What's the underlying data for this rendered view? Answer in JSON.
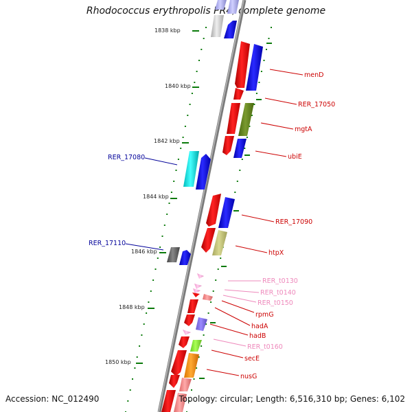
{
  "title": "Rhodococcus erythropolis PR4, complete genome",
  "footer": {
    "accession": "Accession: NC_012490",
    "stats": "Topology: circular; Length: 6,516,310 bp; Genes: 6,102"
  },
  "kbp_labels": [
    "1838 kbp",
    "1840 kbp",
    "1842 kbp",
    "1844 kbp",
    "1846 kbp",
    "1848 kbp",
    "1850 kbp"
  ],
  "colors": {
    "backbone": "#8a8a8a",
    "cds": "#ee0000",
    "gene_blue": "#1010ee",
    "label_red": "#cc0000",
    "label_blue": "#000099",
    "label_pink": "#ee77aa",
    "tick": "#0a7a0a"
  },
  "gene_labels": [
    {
      "name": "menD",
      "color": "#cc0000"
    },
    {
      "name": "RER_17050",
      "color": "#cc0000"
    },
    {
      "name": "mgtA",
      "color": "#cc0000"
    },
    {
      "name": "ubiE",
      "color": "#cc0000"
    },
    {
      "name": "RER_17080",
      "color": "#000099"
    },
    {
      "name": "RER_17090",
      "color": "#cc0000"
    },
    {
      "name": "RER_17110",
      "color": "#000099"
    },
    {
      "name": "htpX",
      "color": "#cc0000"
    },
    {
      "name": "RER_t0130",
      "color": "#ee88bb"
    },
    {
      "name": "RER_t0140",
      "color": "#ee88bb"
    },
    {
      "name": "RER_t0150",
      "color": "#ee88bb"
    },
    {
      "name": "rpmG",
      "color": "#cc0000"
    },
    {
      "name": "hadA",
      "color": "#cc0000"
    },
    {
      "name": "hadB",
      "color": "#cc0000"
    },
    {
      "name": "RER_t0160",
      "color": "#ee88bb"
    },
    {
      "name": "secE",
      "color": "#cc0000"
    },
    {
      "name": "nusG",
      "color": "#cc0000"
    }
  ]
}
